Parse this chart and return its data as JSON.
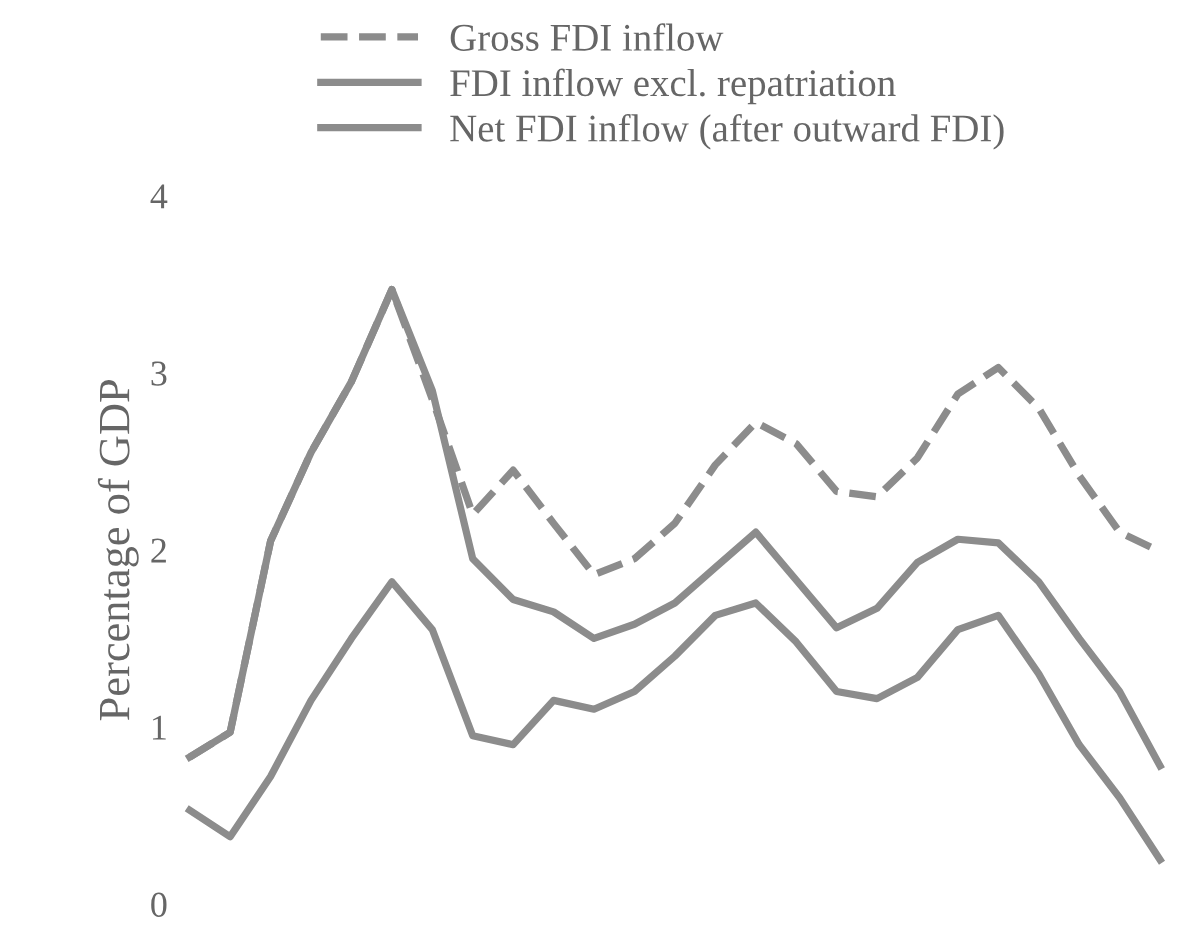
{
  "chart_data": {
    "type": "line",
    "ylabel": "Percentage of GDP",
    "categories": [
      null,
      null,
      null,
      null,
      null,
      null,
      null,
      null,
      null,
      null,
      null,
      null,
      null,
      null,
      null,
      null,
      null,
      null,
      null,
      null,
      null,
      null,
      null,
      null,
      null
    ],
    "series": [
      {
        "name": "Gross FDI inflow",
        "color": "#8c8c8c",
        "line_style": "dashed",
        "values": [
          0.83,
          0.97,
          2.05,
          2.55,
          2.95,
          3.47,
          2.85,
          2.2,
          2.45,
          2.15,
          1.86,
          1.95,
          2.15,
          2.48,
          2.72,
          2.6,
          2.33,
          2.3,
          2.52,
          2.88,
          3.03,
          2.8,
          2.42,
          2.1,
          1.99
        ]
      },
      {
        "name": "FDI inflow excl. repatriation",
        "color": "#8c8c8c",
        "line_style": "solid",
        "values": [
          0.83,
          0.97,
          2.05,
          2.55,
          2.95,
          3.47,
          2.9,
          1.95,
          1.72,
          1.65,
          1.5,
          1.58,
          1.7,
          1.9,
          2.1,
          1.83,
          1.56,
          1.67,
          1.93,
          2.06,
          2.04,
          1.82,
          1.5,
          1.2,
          0.78
        ]
      },
      {
        "name": "Net FDI inflow (after outward FDI)",
        "color": "#8c8c8c",
        "line_style": "solid",
        "values": [
          0.53,
          0.38,
          0.72,
          1.15,
          1.5,
          1.82,
          1.55,
          0.95,
          0.9,
          1.15,
          1.1,
          1.2,
          1.4,
          1.63,
          1.7,
          1.48,
          1.2,
          1.16,
          1.28,
          1.55,
          1.63,
          1.3,
          0.9,
          0.6,
          0.25
        ]
      }
    ],
    "ylim": [
      0,
      4
    ],
    "yticks": [
      0,
      1,
      2,
      3,
      4
    ],
    "grid": false,
    "legend": "top"
  }
}
